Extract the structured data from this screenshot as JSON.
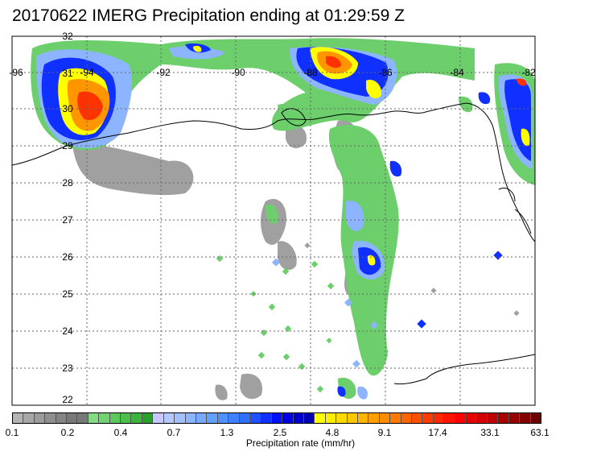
{
  "title": "20170622 IMERG Precipitation ending at 01:29:59 Z",
  "lon_labels": [
    "-96",
    "-94",
    "-92",
    "-90",
    "-88",
    "-86",
    "-84",
    "-82"
  ],
  "lat_labels": [
    "32",
    "31",
    "30",
    "29",
    "28",
    "27",
    "26",
    "25",
    "24",
    "23",
    "22"
  ],
  "map_extent": {
    "lon": [
      -96,
      -82
    ],
    "lat": [
      22,
      32
    ]
  },
  "colorbar": {
    "colors": [
      "#b4b4b4",
      "#a8a8a8",
      "#9c9c9c",
      "#909090",
      "#848484",
      "#787878",
      "#787878",
      "#82dc82",
      "#70d270",
      "#5ec85e",
      "#4cbe4c",
      "#3ab43a",
      "#2aa02a",
      "#c8c8ff",
      "#b4c8ff",
      "#a0c0ff",
      "#8cb4ff",
      "#78a8ff",
      "#64a0ff",
      "#5090ff",
      "#4080ff",
      "#3070ff",
      "#2050ff",
      "#1030ff",
      "#0010ff",
      "#0000e6",
      "#0000c8",
      "#0000b4",
      "#ffff00",
      "#ffee00",
      "#ffdc00",
      "#ffc800",
      "#ffb400",
      "#ffa000",
      "#ff8c00",
      "#ff7800",
      "#ff6400",
      "#ff5000",
      "#ff3c00",
      "#ff2800",
      "#ff1400",
      "#ff0000",
      "#e60000",
      "#d20000",
      "#be0000",
      "#aa0000",
      "#960000",
      "#820000",
      "#6e0000"
    ],
    "tick_labels": [
      "0.1",
      "0.2",
      "0.4",
      "0.7",
      "1.3",
      "2.5",
      "4.8",
      "9.1",
      "17.4",
      "33.1",
      "63.1"
    ],
    "label": "Precipitation rate (mm/hr)"
  },
  "precip_legend_colors": {
    "light": "#a0a0a0",
    "green": "#6ccf6c",
    "lightblue": "#8cb4ff",
    "blue": "#1030ff",
    "darkblue": "#0000b4",
    "yellow": "#ffff00",
    "orange": "#ff9600",
    "red": "#ff3200"
  }
}
